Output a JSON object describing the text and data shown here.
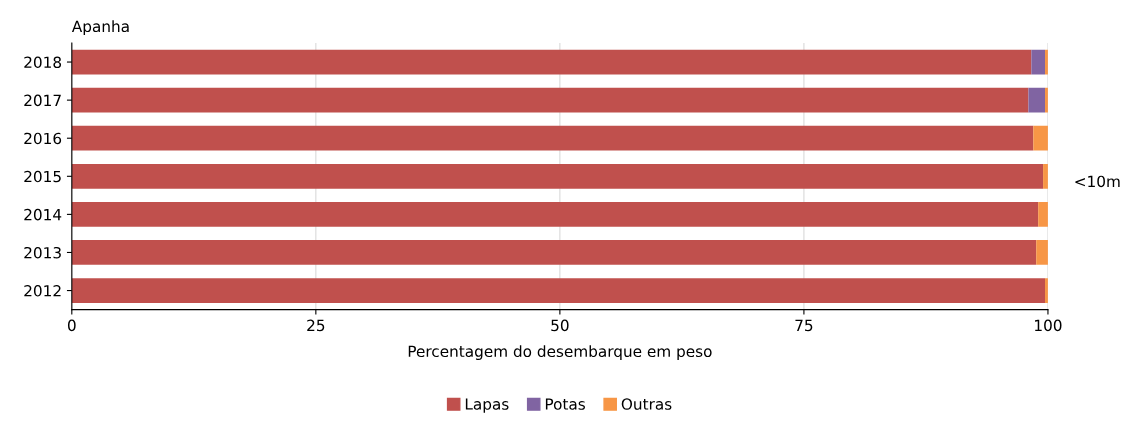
{
  "chart_data": {
    "type": "bar",
    "orientation": "horizontal",
    "stacked": true,
    "title": "Apanha",
    "xlabel": "Percentagem do desembarque em peso",
    "annotations": [
      "<10m"
    ],
    "categories": [
      "2018",
      "2017",
      "2016",
      "2015",
      "2014",
      "2013",
      "2012"
    ],
    "series": [
      {
        "name": "Lapas",
        "color": "#c0504d",
        "values": [
          98.3,
          98.0,
          98.5,
          99.5,
          99.0,
          98.8,
          99.7
        ]
      },
      {
        "name": "Potas",
        "color": "#8064a2",
        "values": [
          1.4,
          1.7,
          0,
          0,
          0,
          0,
          0
        ]
      },
      {
        "name": "Outras",
        "color": "#f79646",
        "values": [
          0.3,
          0.3,
          1.5,
          0.5,
          1.0,
          1.2,
          0.3
        ]
      }
    ],
    "xlim": [
      0,
      100
    ],
    "xticks": [
      0,
      25,
      50,
      75,
      100
    ],
    "grid": "x",
    "legend": "bottom"
  }
}
